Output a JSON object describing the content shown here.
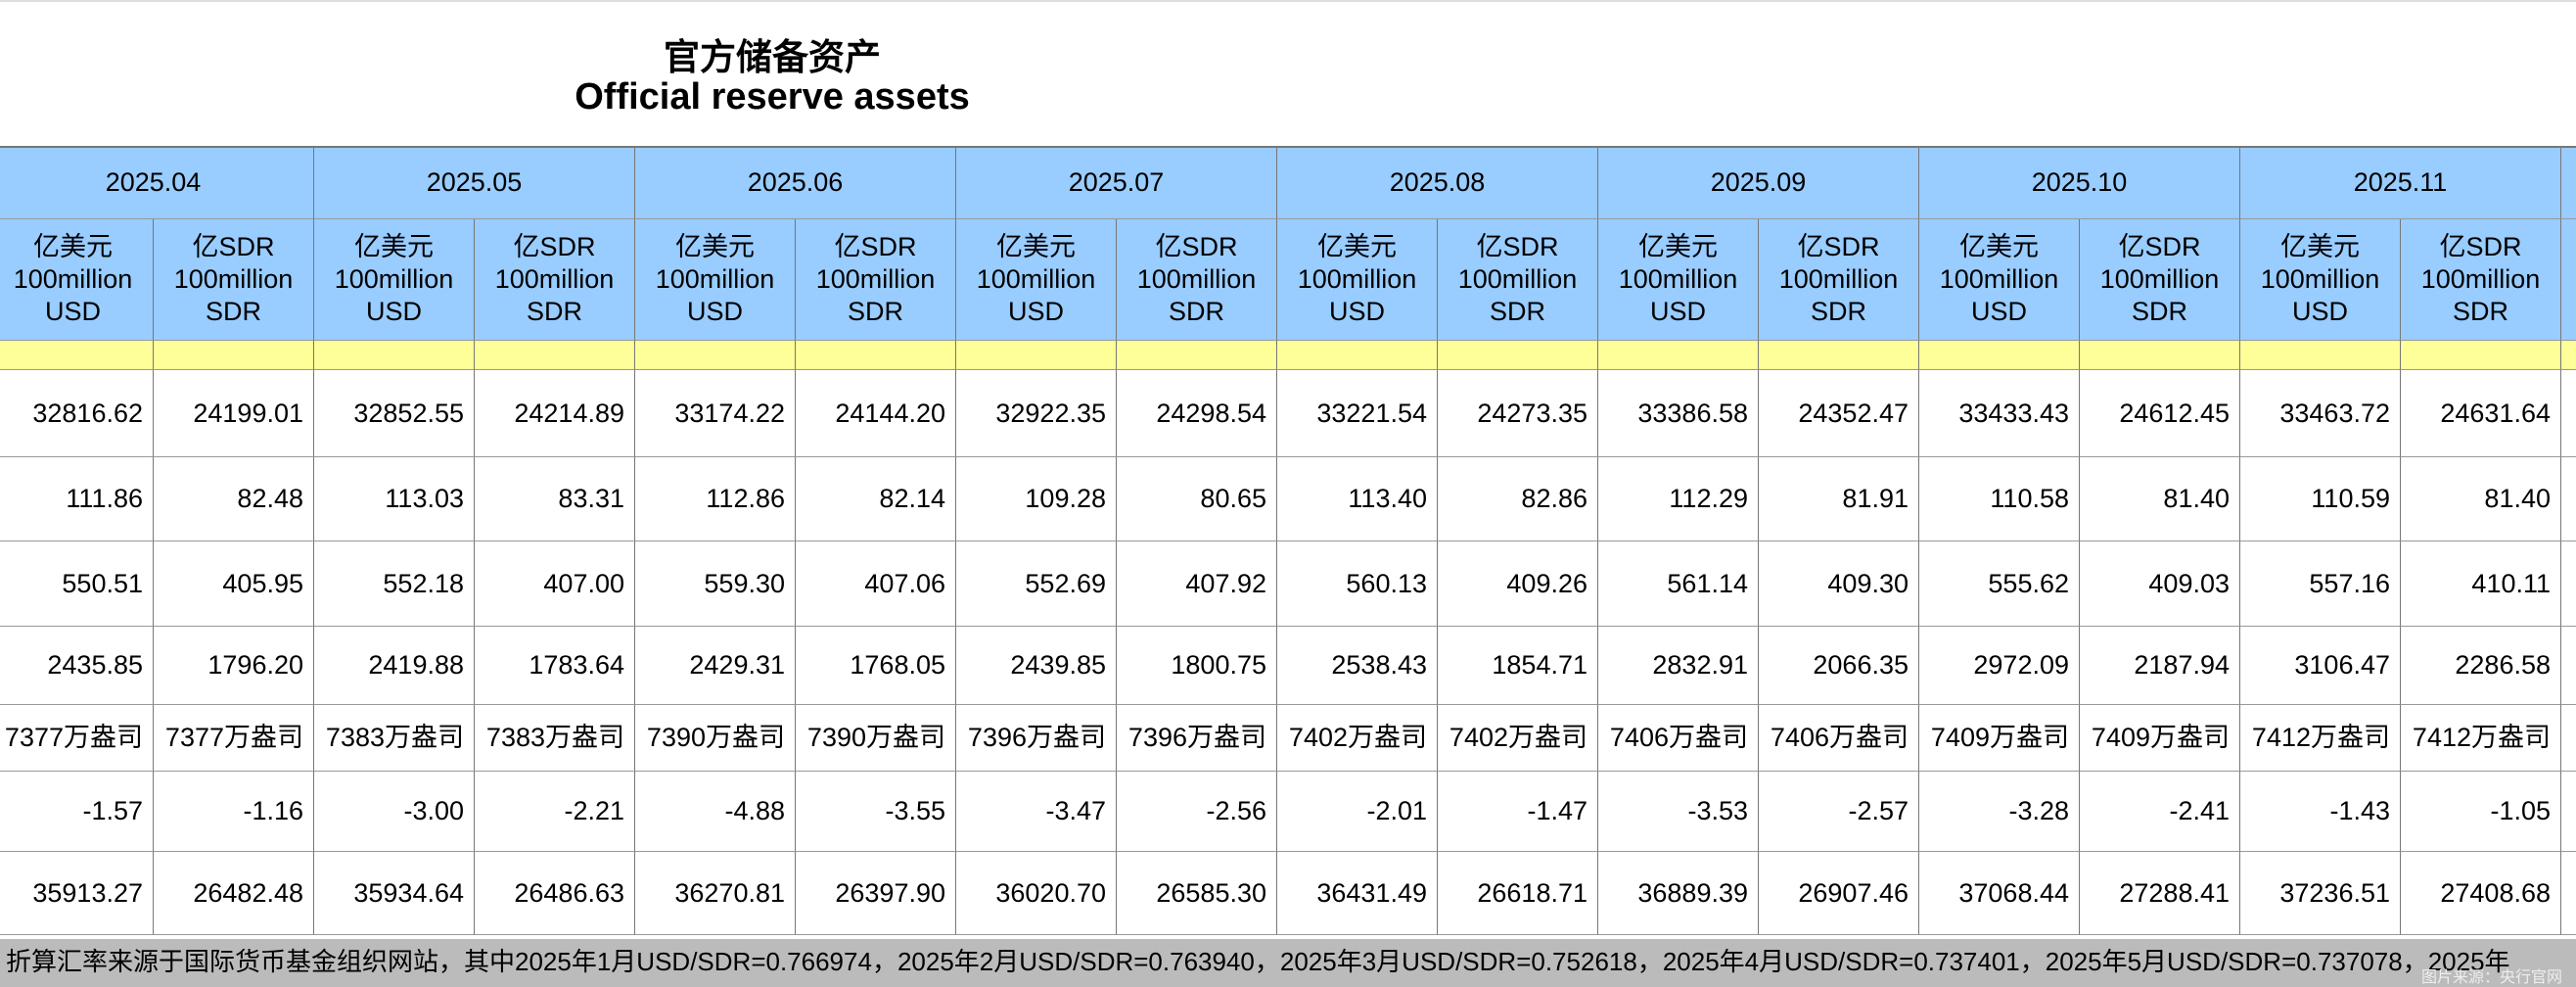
{
  "header": {
    "title_zh": "官方储备资产",
    "title_en": "Official reserve assets"
  },
  "table": {
    "months": [
      "2025.04",
      "2025.05",
      "2025.06",
      "2025.07",
      "2025.08",
      "2025.09",
      "2025.10",
      "2025.11"
    ],
    "units": [
      "亿美元\n100million\nUSD",
      "亿SDR\n100million\nSDR"
    ],
    "rows": [
      [
        "32816.62",
        "24199.01",
        "32852.55",
        "24214.89",
        "33174.22",
        "24144.20",
        "32922.35",
        "24298.54",
        "33221.54",
        "24273.35",
        "33386.58",
        "24352.47",
        "33433.43",
        "24612.45",
        "33463.72",
        "24631.64"
      ],
      [
        "111.86",
        "82.48",
        "113.03",
        "83.31",
        "112.86",
        "82.14",
        "109.28",
        "80.65",
        "113.40",
        "82.86",
        "112.29",
        "81.91",
        "110.58",
        "81.40",
        "110.59",
        "81.40"
      ],
      [
        "550.51",
        "405.95",
        "552.18",
        "407.00",
        "559.30",
        "407.06",
        "552.69",
        "407.92",
        "560.13",
        "409.26",
        "561.14",
        "409.30",
        "555.62",
        "409.03",
        "557.16",
        "410.11"
      ],
      [
        "2435.85",
        "1796.20",
        "2419.88",
        "1783.64",
        "2429.31",
        "1768.05",
        "2439.85",
        "1800.75",
        "2538.43",
        "1854.71",
        "2832.91",
        "2066.35",
        "2972.09",
        "2187.94",
        "3106.47",
        "2286.58"
      ],
      [
        "7377万盎司",
        "7377万盎司",
        "7383万盎司",
        "7383万盎司",
        "7390万盎司",
        "7390万盎司",
        "7396万盎司",
        "7396万盎司",
        "7402万盎司",
        "7402万盎司",
        "7406万盎司",
        "7406万盎司",
        "7409万盎司",
        "7409万盎司",
        "7412万盎司",
        "7412万盎司"
      ],
      [
        "-1.57",
        "-1.16",
        "-3.00",
        "-2.21",
        "-4.88",
        "-3.55",
        "-3.47",
        "-2.56",
        "-2.01",
        "-1.47",
        "-3.53",
        "-2.57",
        "-3.28",
        "-2.41",
        "-1.43",
        "-1.05"
      ],
      [
        "35913.27",
        "26482.48",
        "35934.64",
        "26486.63",
        "36270.81",
        "26397.90",
        "36020.70",
        "26585.30",
        "36431.49",
        "26618.71",
        "36889.39",
        "26907.46",
        "37068.44",
        "27288.41",
        "37236.51",
        "27408.68"
      ]
    ]
  },
  "footer": {
    "note": "折算汇率来源于国际货币基金组织网站，其中2025年1月USD/SDR=0.766974，2025年2月USD/SDR=0.763940，2025年3月USD/SDR=0.752618，2025年4月USD/SDR=0.737401，2025年5月USD/SDR=0.737078，2025年",
    "source": "图片来源：央行官网"
  }
}
